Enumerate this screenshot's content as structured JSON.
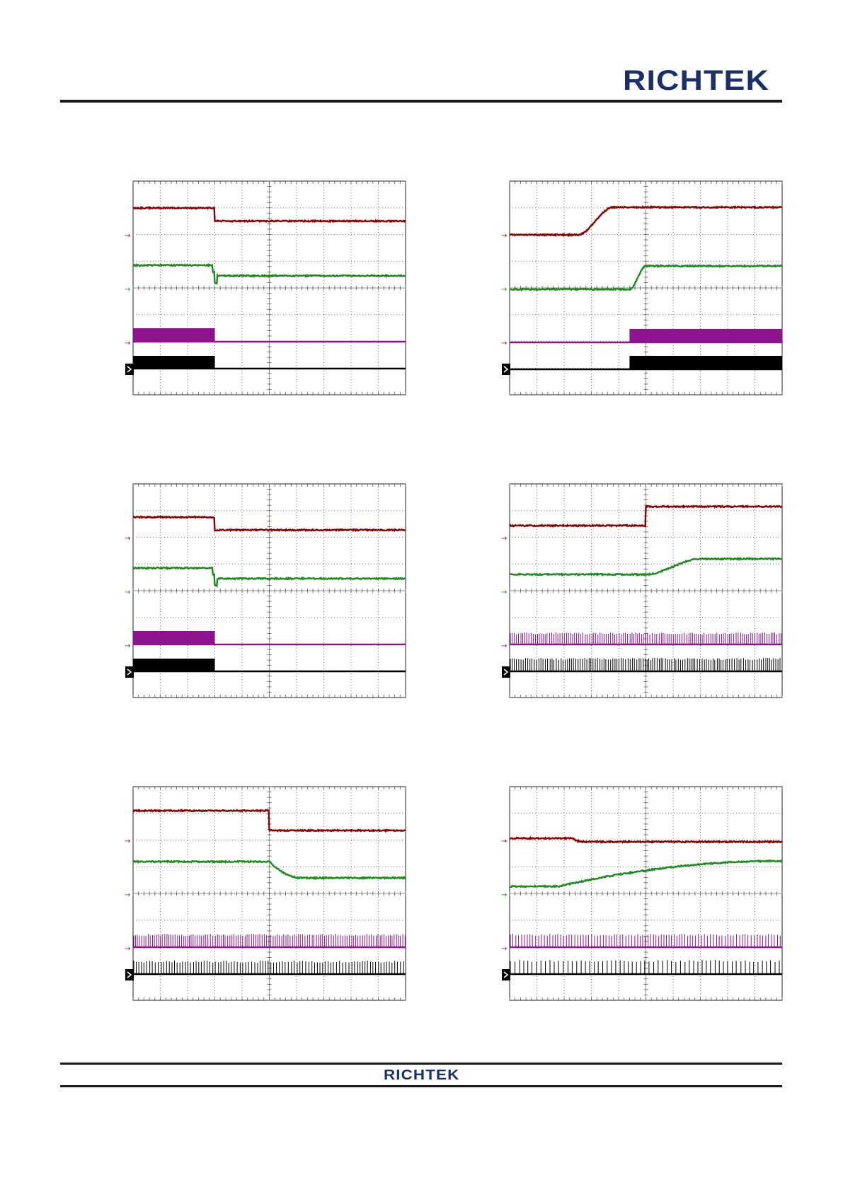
{
  "header": {
    "brand": "RICHTEK"
  },
  "footer": {
    "brand": "RICHTEK"
  },
  "scopes": [
    {
      "id": "scope-1",
      "traces": {
        "red": {
          "shape": "step-down",
          "from": 1.0,
          "to": 0.5,
          "at": 0.3
        },
        "green": {
          "shape": "step-down",
          "from": 1.0,
          "to": 0.55,
          "at": 0.3
        },
        "purple": {
          "shape": "burst-until",
          "at": 0.3
        },
        "black": {
          "shape": "burst-until",
          "at": 0.3
        }
      }
    },
    {
      "id": "scope-2",
      "traces": {
        "red": {
          "shape": "ramp-up",
          "from": 0.0,
          "to": 1.0,
          "start": 0.25,
          "end": 0.38
        },
        "green": {
          "shape": "ramp-up",
          "from": 0.0,
          "to": 1.0,
          "start": 0.44,
          "end": 0.5
        },
        "purple": {
          "shape": "burst-after",
          "at": 0.44
        },
        "black": {
          "shape": "burst-after",
          "at": 0.44
        }
      }
    },
    {
      "id": "scope-3",
      "traces": {
        "red": {
          "shape": "step-down",
          "from": 1.0,
          "to": 0.35,
          "at": 0.3
        },
        "green": {
          "shape": "step-down",
          "from": 1.0,
          "to": 0.55,
          "at": 0.3
        },
        "purple": {
          "shape": "burst-until",
          "at": 0.3
        },
        "black": {
          "shape": "burst-until",
          "at": 0.3
        }
      }
    },
    {
      "id": "scope-4",
      "traces": {
        "red": {
          "shape": "step-up",
          "from": 0.0,
          "to": 1.0,
          "at": 0.5
        },
        "green": {
          "shape": "ramp-up",
          "from": 0.0,
          "to": 1.0,
          "start": 0.5,
          "end": 0.7
        },
        "purple": {
          "shape": "pulses",
          "density": "high"
        },
        "black": {
          "shape": "pulses",
          "density": "high"
        }
      }
    },
    {
      "id": "scope-5",
      "traces": {
        "red": {
          "shape": "step-down",
          "from": 1.0,
          "to": 0.0,
          "at": 0.5
        },
        "green": {
          "shape": "ramp-down",
          "from": 1.0,
          "to": 0.0,
          "start": 0.5,
          "end": 0.62
        },
        "purple": {
          "shape": "pulses",
          "density": "high"
        },
        "black": {
          "shape": "pulses",
          "density": "medium"
        }
      }
    },
    {
      "id": "scope-6",
      "traces": {
        "red": {
          "shape": "ramp-down",
          "from": 1.0,
          "to": 0.0,
          "start": 0.23,
          "end": 0.27
        },
        "green": {
          "shape": "ramp-up",
          "from": 0.0,
          "to": 1.0,
          "start": 0.18,
          "end": 1.0
        },
        "purple": {
          "shape": "pulses",
          "density": "medium"
        },
        "black": {
          "shape": "pulses",
          "density": "low"
        }
      }
    }
  ]
}
